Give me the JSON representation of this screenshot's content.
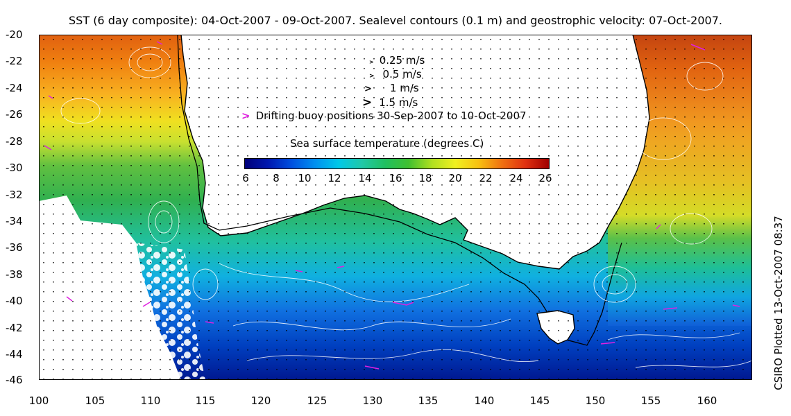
{
  "title": "SST (6 day composite): 04-Oct-2007 - 09-Oct-2007. Sealevel contours (0.1 m) and geostrophic velocity: 07-Oct-2007.",
  "credit": "CSIRO Plotted 13-Oct-2007 08:37",
  "axes": {
    "lat_labels": [
      "-20",
      "-22",
      "-24",
      "-26",
      "-28",
      "-30",
      "-32",
      "-34",
      "-36",
      "-38",
      "-40",
      "-42",
      "-44",
      "-46"
    ],
    "lon_labels": [
      "100",
      "105",
      "110",
      "115",
      "120",
      "125",
      "130",
      "135",
      "140",
      "145",
      "150",
      "155",
      "160"
    ]
  },
  "legend": {
    "velocity_scale": [
      {
        "label": "0.25 m/s",
        "glyph": ">"
      },
      {
        "label": "0.5 m/s",
        "glyph": ">"
      },
      {
        "label": "1 m/s",
        "glyph": ">"
      },
      {
        "label": "1.5 m/s",
        "glyph": ">"
      }
    ],
    "buoy_glyph": ">",
    "buoy_text": "Drifting buoy positions 30-Sep-2007 to 10-Oct-2007",
    "colorbar_title": "Sea surface temperature (degrees C)",
    "colorbar_ticks": [
      "6",
      "8",
      "10",
      "12",
      "14",
      "16",
      "18",
      "20",
      "22",
      "24",
      "26"
    ]
  },
  "colors": {
    "land": "#ffffff",
    "coast": "#000000",
    "buoy": "#e020e0",
    "contour": "#ffffff",
    "vector": "#000000"
  }
}
